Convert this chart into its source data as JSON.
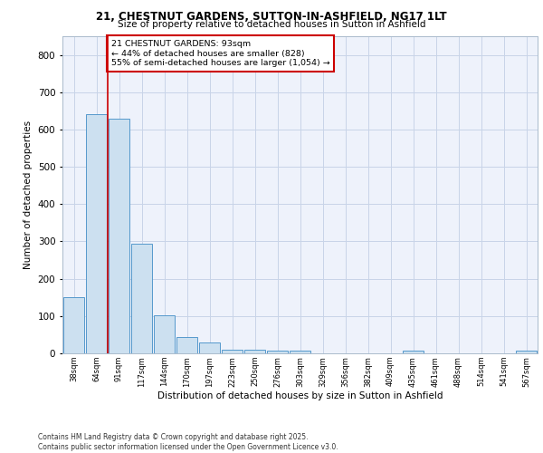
{
  "title1": "21, CHESTNUT GARDENS, SUTTON-IN-ASHFIELD, NG17 1LT",
  "title2": "Size of property relative to detached houses in Sutton in Ashfield",
  "xlabel": "Distribution of detached houses by size in Sutton in Ashfield",
  "ylabel": "Number of detached properties",
  "footer1": "Contains HM Land Registry data © Crown copyright and database right 2025.",
  "footer2": "Contains public sector information licensed under the Open Government Licence v3.0.",
  "bin_labels": [
    "38sqm",
    "64sqm",
    "91sqm",
    "117sqm",
    "144sqm",
    "170sqm",
    "197sqm",
    "223sqm",
    "250sqm",
    "276sqm",
    "303sqm",
    "329sqm",
    "356sqm",
    "382sqm",
    "409sqm",
    "435sqm",
    "461sqm",
    "488sqm",
    "514sqm",
    "541sqm",
    "567sqm"
  ],
  "bar_values": [
    150,
    640,
    630,
    293,
    103,
    44,
    29,
    10,
    10,
    8,
    8,
    0,
    0,
    0,
    0,
    8,
    0,
    0,
    0,
    0,
    8
  ],
  "bar_color": "#cce0f0",
  "bar_edge_color": "#5599cc",
  "red_line_x": 1.5,
  "annotation_text": "21 CHESTNUT GARDENS: 93sqm\n← 44% of detached houses are smaller (828)\n55% of semi-detached houses are larger (1,054) →",
  "annotation_box_color": "#ffffff",
  "annotation_box_edge_color": "#cc0000",
  "ylim": [
    0,
    850
  ],
  "yticks": [
    0,
    100,
    200,
    300,
    400,
    500,
    600,
    700,
    800
  ],
  "bg_color": "#eef2fb",
  "grid_color": "#c8d4e8"
}
